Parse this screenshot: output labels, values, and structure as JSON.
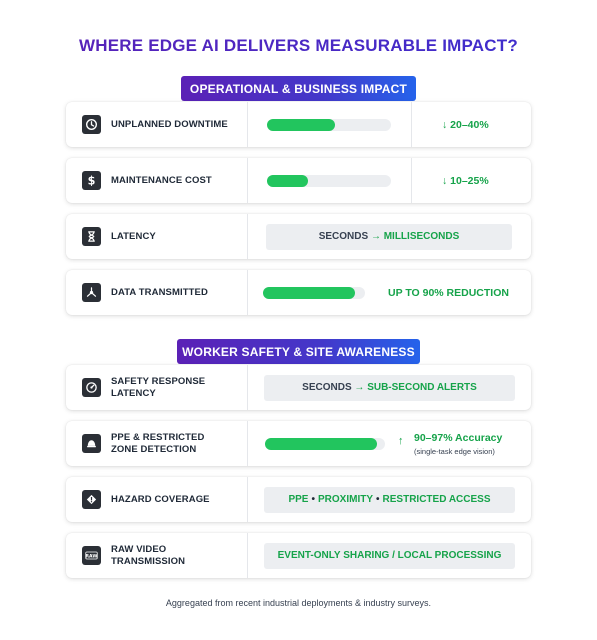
{
  "title": "WHERE EDGE AI DELIVERS MEASURABLE IMPACT?",
  "colors": {
    "accent_purple": "#5b21b6",
    "accent_blue": "#2563eb",
    "bar_green": "#22c55e",
    "value_green": "#16a34a",
    "track_gray": "#eceef1"
  },
  "sections": [
    {
      "banner": "OPERATIONAL & BUSINESS IMPACT",
      "rows": [
        {
          "icon": "clock-icon",
          "label": "UNPLANNED DOWNTIME",
          "bar_level": 0.55,
          "value": "↓ 20–40%"
        },
        {
          "icon": "dollar-icon",
          "label": "MAINTENANCE COST",
          "bar_level": 0.33,
          "value": "↓ 10–25%"
        },
        {
          "icon": "hourglass-icon",
          "label": "LATENCY",
          "from": "SECONDS",
          "arrow": "→",
          "to": "MILLISECONDS"
        },
        {
          "icon": "network-icon",
          "label": "DATA TRANSMITTED",
          "bar_level": 0.9,
          "value": "UP TO 90% REDUCTION"
        }
      ]
    },
    {
      "banner": "WORKER SAFETY & SITE AWARENESS",
      "rows": [
        {
          "icon": "gauge-icon",
          "label_line1": "SAFETY RESPONSE",
          "label_line2": "LATENCY",
          "from": "SECONDS",
          "arrow": "→",
          "to": "SUB-SECOND ALERTS"
        },
        {
          "icon": "helmet-icon",
          "label_line1": "PPE & RESTRICTED",
          "label_line2": "ZONE DETECTION",
          "bar_level": 0.93,
          "value_arrow": "↑",
          "value": "90–97% Accuracy",
          "value_note": "(single-task edge vision)"
        },
        {
          "icon": "warning-icon",
          "label": "HAZARD COVERAGE",
          "items": [
            "PPE",
            "PROXIMITY",
            "RESTRICTED ACCESS"
          ],
          "separator": "•"
        },
        {
          "icon": "raw-icon",
          "icon_text": "RAW",
          "label_line1": "RAW VIDEO",
          "label_line2": "TRANSMISSION",
          "value": "EVENT-ONLY SHARING / LOCAL PROCESSING"
        }
      ]
    }
  ],
  "footnote": "Aggregated from recent industrial deployments & industry surveys."
}
